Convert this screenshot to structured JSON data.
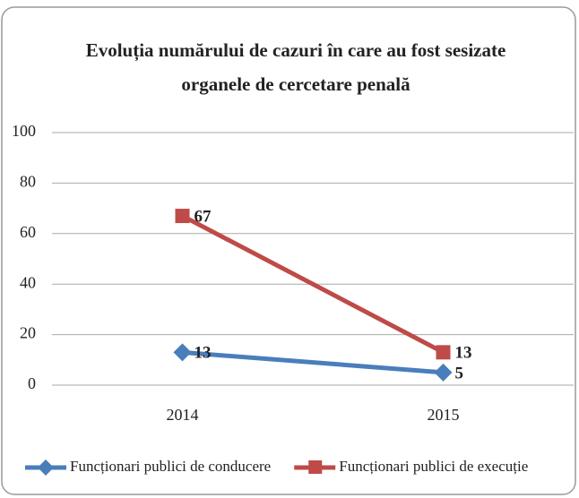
{
  "chart_data": {
    "type": "line",
    "title": "Evoluția numărului de cazuri în care au fost sesizate organele de cercetare penală",
    "title_lines": [
      "Evoluția numărului de cazuri în care au fost sesizate",
      "organele de cercetare penală"
    ],
    "categories": [
      "2014",
      "2015"
    ],
    "series": [
      {
        "name": "Funcționari publici de conducere",
        "color": "#4a7ebb",
        "marker": "diamond",
        "values": [
          13,
          5
        ]
      },
      {
        "name": "Funcționari publici de execuție",
        "color": "#be4b48",
        "marker": "square",
        "values": [
          67,
          13
        ]
      }
    ],
    "ylim": [
      0,
      100
    ],
    "yticks": [
      0,
      20,
      40,
      60,
      80,
      100
    ],
    "grid": true,
    "legend": "bottom"
  }
}
